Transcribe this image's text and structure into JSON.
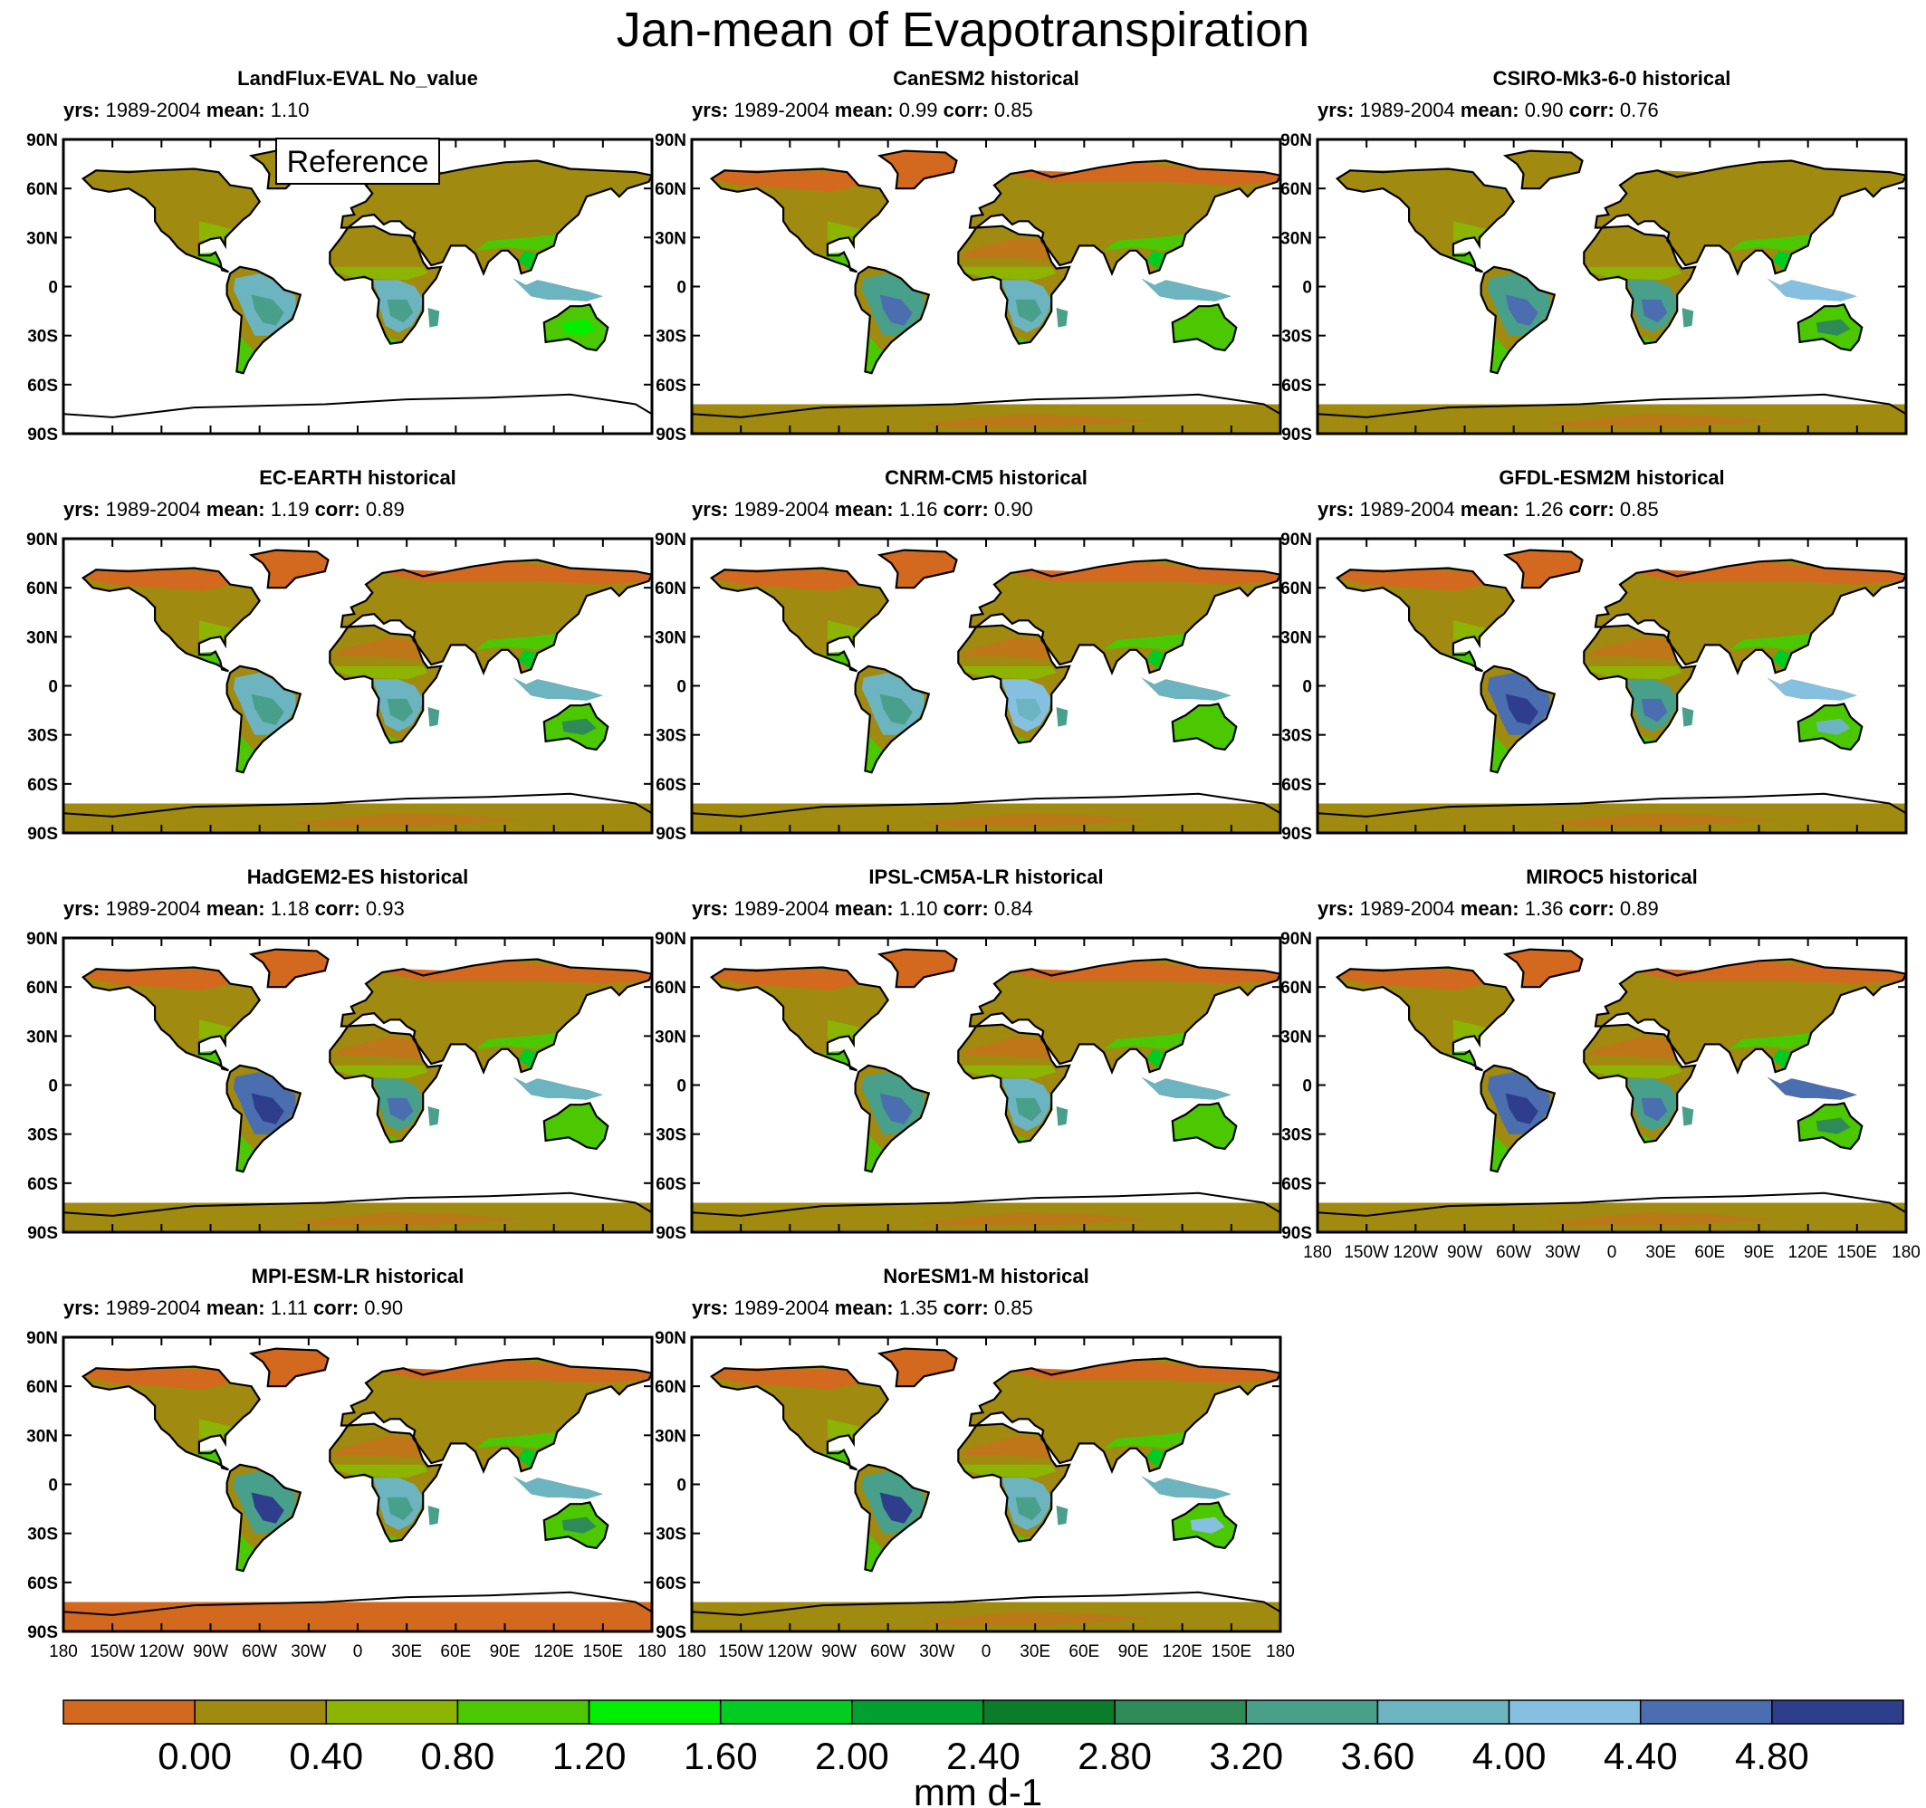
{
  "figure": {
    "title": "Jan-mean of Evapotranspiration",
    "reference_label": "Reference",
    "stats_keys": {
      "yrs": "yrs:",
      "mean": "mean:",
      "corr": "corr:"
    }
  },
  "chart_data": {
    "type": "heatmap",
    "title": "Jan-mean of Evapotranspiration",
    "axes": {
      "lat_ticks": [
        "90N",
        "60N",
        "30N",
        "0",
        "30S",
        "60S",
        "90S"
      ],
      "lon_ticks": [
        "180",
        "150W",
        "120W",
        "90W",
        "60W",
        "30W",
        "0",
        "30E",
        "60E",
        "90E",
        "120E",
        "150E",
        "180"
      ],
      "lat_range": [
        -90,
        90
      ],
      "lon_range": [
        -180,
        180
      ]
    },
    "colorbar": {
      "unit": "mm d-1",
      "labels": [
        "0.00",
        "0.40",
        "0.80",
        "1.20",
        "1.60",
        "2.00",
        "2.40",
        "2.80",
        "3.20",
        "3.60",
        "4.00",
        "4.40",
        "4.80"
      ],
      "colors": [
        "#d2691e",
        "#a08a10",
        "#8cb400",
        "#4cc800",
        "#00ee00",
        "#00cc22",
        "#00a030",
        "#0b7d2a",
        "#2e8b57",
        "#48a08a",
        "#6cb4c0",
        "#86c0e0",
        "#4a6eb0",
        "#2e3e8c"
      ]
    },
    "panels": [
      {
        "name": "LandFlux-EVAL No_value",
        "yrs": "1989-2004",
        "mean": "1.10",
        "corr": null,
        "reference": true
      },
      {
        "name": "CanESM2 historical",
        "yrs": "1989-2004",
        "mean": "0.99",
        "corr": "0.85"
      },
      {
        "name": "CSIRO-Mk3-6-0 historical",
        "yrs": "1989-2004",
        "mean": "0.90",
        "corr": "0.76"
      },
      {
        "name": "EC-EARTH historical",
        "yrs": "1989-2004",
        "mean": "1.19",
        "corr": "0.89"
      },
      {
        "name": "CNRM-CM5 historical",
        "yrs": "1989-2004",
        "mean": "1.16",
        "corr": "0.90"
      },
      {
        "name": "GFDL-ESM2M historical",
        "yrs": "1989-2004",
        "mean": "1.26",
        "corr": "0.85"
      },
      {
        "name": "HadGEM2-ES historical",
        "yrs": "1989-2004",
        "mean": "1.18",
        "corr": "0.93"
      },
      {
        "name": "IPSL-CM5A-LR historical",
        "yrs": "1989-2004",
        "mean": "1.10",
        "corr": "0.84"
      },
      {
        "name": "MIROC5 historical",
        "yrs": "1989-2004",
        "mean": "1.36",
        "corr": "0.89"
      },
      {
        "name": "MPI-ESM-LR historical",
        "yrs": "1989-2004",
        "mean": "1.11",
        "corr": "0.90"
      },
      {
        "name": "NorESM1-M historical",
        "yrs": "1989-2004",
        "mean": "1.35",
        "corr": "0.85"
      }
    ]
  }
}
